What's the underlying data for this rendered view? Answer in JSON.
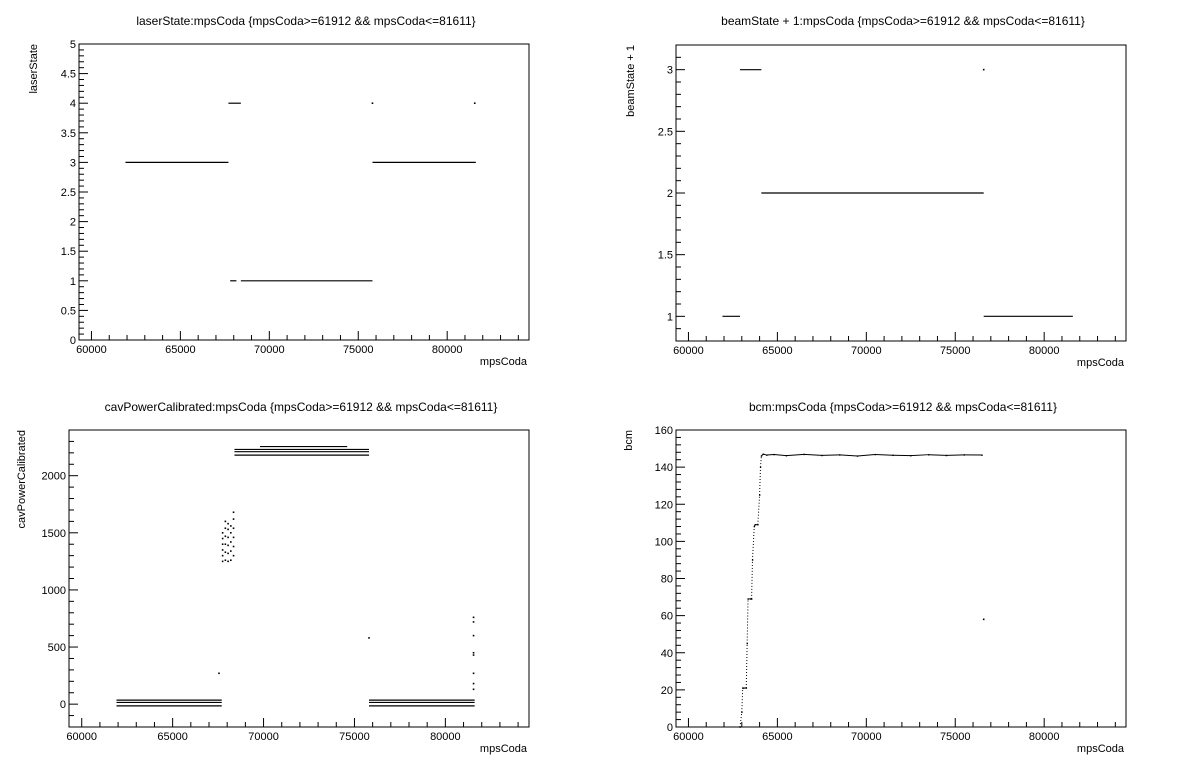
{
  "chart_data": [
    {
      "type": "scatter",
      "title": "laserState:mpsCoda {mpsCoda>=61912 && mpsCoda<=81611}",
      "xlabel": "mpsCoda",
      "ylabel": "laserState",
      "xlim": [
        59300,
        84600
      ],
      "ylim": [
        0,
        5
      ],
      "xticks": [
        60000,
        65000,
        70000,
        75000,
        80000
      ],
      "xtick_labels": [
        "60000",
        "65000",
        "70000",
        "75000",
        "80000"
      ],
      "yticks": [
        0,
        0.5,
        1,
        1.5,
        2,
        2.5,
        3,
        3.5,
        4,
        4.5,
        5
      ],
      "ytick_labels": [
        "0",
        "0.5",
        "1",
        "1.5",
        "2",
        "2.5",
        "3",
        "3.5",
        "4",
        "4.5",
        "5"
      ],
      "segments": [
        {
          "x": [
            61912,
            67700
          ],
          "y": 3
        },
        {
          "x": [
            67700,
            68400
          ],
          "y": 4
        },
        {
          "x": [
            67800,
            68150
          ],
          "y": 1
        },
        {
          "x": [
            68400,
            75800
          ],
          "y": 1
        },
        {
          "x": [
            75800,
            81611
          ],
          "y": 3
        }
      ],
      "points": [
        {
          "x": 75800,
          "y": 4
        },
        {
          "x": 81550,
          "y": 4
        }
      ]
    },
    {
      "type": "scatter",
      "title": "beamState + 1:mpsCoda {mpsCoda>=61912 && mpsCoda<=81611}",
      "xlabel": "mpsCoda",
      "ylabel": "beamState + 1",
      "xlim": [
        59300,
        84600
      ],
      "ylim": [
        0.8,
        3.2
      ],
      "xticks": [
        60000,
        65000,
        70000,
        75000,
        80000
      ],
      "xtick_labels": [
        "60000",
        "65000",
        "70000",
        "75000",
        "80000"
      ],
      "yticks": [
        1,
        1.5,
        2,
        2.5,
        3
      ],
      "ytick_labels": [
        "1",
        "1.5",
        "2",
        "2.5",
        "3"
      ],
      "segments": [
        {
          "x": [
            61912,
            62900
          ],
          "y": 1
        },
        {
          "x": [
            62900,
            64100
          ],
          "y": 3
        },
        {
          "x": [
            64100,
            76600
          ],
          "y": 2
        },
        {
          "x": [
            76600,
            81611
          ],
          "y": 1
        }
      ],
      "points": [
        {
          "x": 76600,
          "y": 3
        }
      ]
    },
    {
      "type": "scatter",
      "title": "cavPowerCalibrated:mpsCoda {mpsCoda>=61912 && mpsCoda<=81611}",
      "xlabel": "mpsCoda",
      "ylabel": "cavPowerCalibrated",
      "xlim": [
        59300,
        84600
      ],
      "ylim": [
        -200,
        2400
      ],
      "xticks": [
        60000,
        65000,
        70000,
        75000,
        80000
      ],
      "xtick_labels": [
        "60000",
        "65000",
        "70000",
        "75000",
        "80000"
      ],
      "yticks": [
        0,
        500,
        1000,
        1500,
        2000
      ],
      "ytick_labels": [
        "0",
        "500",
        "1000",
        "1500",
        "2000"
      ],
      "segments": [
        {
          "x": [
            61912,
            67700
          ],
          "y": 35
        },
        {
          "x": [
            61912,
            67700
          ],
          "y": 15
        },
        {
          "x": [
            61912,
            67700
          ],
          "y": -15
        },
        {
          "x": [
            68400,
            75800
          ],
          "y": 2230
        },
        {
          "x": [
            68400,
            75800
          ],
          "y": 2210
        },
        {
          "x": [
            68400,
            75800
          ],
          "y": 2180
        },
        {
          "x": [
            69800,
            74600
          ],
          "y": 2255
        },
        {
          "x": [
            75800,
            81611
          ],
          "y": 35
        },
        {
          "x": [
            75800,
            81611
          ],
          "y": 15
        },
        {
          "x": [
            75800,
            81611
          ],
          "y": -15
        }
      ],
      "points": [
        {
          "x": 67550,
          "y": 270
        },
        {
          "x": 67750,
          "y": 1250
        },
        {
          "x": 67750,
          "y": 1300
        },
        {
          "x": 67750,
          "y": 1350
        },
        {
          "x": 67750,
          "y": 1400
        },
        {
          "x": 67750,
          "y": 1450
        },
        {
          "x": 67750,
          "y": 1500
        },
        {
          "x": 67900,
          "y": 1260
        },
        {
          "x": 67900,
          "y": 1330
        },
        {
          "x": 67900,
          "y": 1400
        },
        {
          "x": 67900,
          "y": 1470
        },
        {
          "x": 67900,
          "y": 1540
        },
        {
          "x": 67900,
          "y": 1600
        },
        {
          "x": 68050,
          "y": 1250
        },
        {
          "x": 68050,
          "y": 1320
        },
        {
          "x": 68050,
          "y": 1390
        },
        {
          "x": 68050,
          "y": 1460
        },
        {
          "x": 68050,
          "y": 1530
        },
        {
          "x": 68050,
          "y": 1580
        },
        {
          "x": 68200,
          "y": 1260
        },
        {
          "x": 68200,
          "y": 1340
        },
        {
          "x": 68200,
          "y": 1420
        },
        {
          "x": 68200,
          "y": 1500
        },
        {
          "x": 68200,
          "y": 1560
        },
        {
          "x": 68350,
          "y": 1300
        },
        {
          "x": 68350,
          "y": 1380
        },
        {
          "x": 68350,
          "y": 1460
        },
        {
          "x": 68350,
          "y": 1540
        },
        {
          "x": 68350,
          "y": 1620
        },
        {
          "x": 68350,
          "y": 1680
        },
        {
          "x": 75800,
          "y": 580
        },
        {
          "x": 81550,
          "y": 760
        },
        {
          "x": 81550,
          "y": 720
        },
        {
          "x": 81550,
          "y": 600
        },
        {
          "x": 81550,
          "y": 450
        },
        {
          "x": 81550,
          "y": 430
        },
        {
          "x": 81550,
          "y": 270
        },
        {
          "x": 81550,
          "y": 180
        },
        {
          "x": 81550,
          "y": 130
        }
      ]
    },
    {
      "type": "line",
      "title": "bcm:mpsCoda {mpsCoda>=61912 && mpsCoda<=81611}",
      "xlabel": "mpsCoda",
      "ylabel": "bcm",
      "xlim": [
        59300,
        84600
      ],
      "ylim": [
        0,
        160
      ],
      "xticks": [
        60000,
        65000,
        70000,
        75000,
        80000
      ],
      "xtick_labels": [
        "60000",
        "65000",
        "70000",
        "75000",
        "80000"
      ],
      "yticks": [
        0,
        20,
        40,
        60,
        80,
        100,
        120,
        140,
        160
      ],
      "ytick_labels": [
        "0",
        "20",
        "40",
        "60",
        "80",
        "100",
        "120",
        "140",
        "160"
      ],
      "series": [
        {
          "x": [
            62900,
            63000,
            63050,
            63100,
            63250,
            63300,
            63350,
            63500,
            63550,
            63600,
            63700,
            63750,
            63900,
            64000,
            64050,
            64100,
            64200,
            64400,
            64800,
            65500,
            66500,
            67500,
            68500,
            69500,
            70500,
            71500,
            72500,
            73500,
            74500,
            75500,
            76500
          ],
          "y": [
            0,
            8,
            21,
            21,
            21,
            45,
            69,
            69,
            69,
            90,
            108,
            109,
            109,
            125,
            140,
            146,
            147,
            146.5,
            146.8,
            146.2,
            146.9,
            146.3,
            146.6,
            146.0,
            146.8,
            146.4,
            146.2,
            146.7,
            146.3,
            146.6,
            146.5
          ]
        }
      ],
      "points": [
        {
          "x": 76600,
          "y": 58
        }
      ]
    }
  ]
}
